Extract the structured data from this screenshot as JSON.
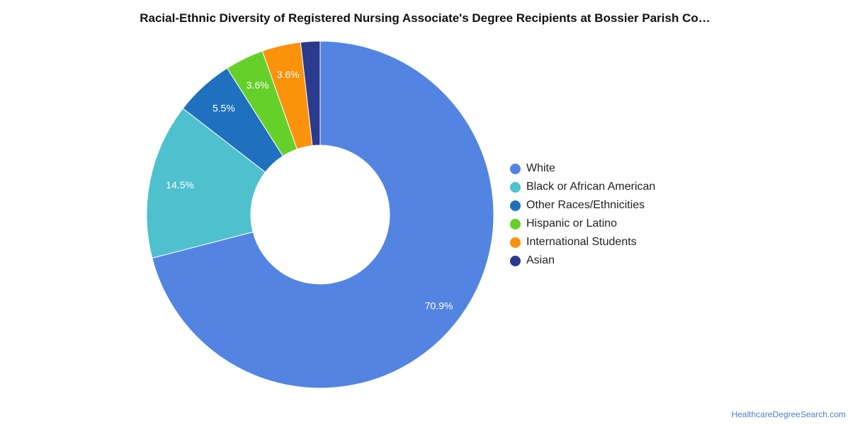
{
  "title": "Racial-Ethnic Diversity of Registered Nursing Associate's Degree Recipients at Bossier Parish Co…",
  "source": "HealthcareDegreeSearch.com",
  "chart_data": {
    "type": "pie",
    "variant": "donut",
    "title": "Racial-Ethnic Diversity of Registered Nursing Associate's Degree Recipients at Bossier Parish Co…",
    "legend_position": "right",
    "slices": [
      {
        "name": "White",
        "value": 70.9,
        "label": "70.9%",
        "color": "#5384e2"
      },
      {
        "name": "Black or African American",
        "value": 14.5,
        "label": "14.5%",
        "color": "#4fc0cd"
      },
      {
        "name": "Other Races/Ethnicities",
        "value": 5.5,
        "label": "5.5%",
        "color": "#1f70be"
      },
      {
        "name": "Hispanic or Latino",
        "value": 3.6,
        "label": "3.6%",
        "color": "#66d02a"
      },
      {
        "name": "International Students",
        "value": 3.6,
        "label": "3.6%",
        "color": "#fb920b"
      },
      {
        "name": "Asian",
        "value": 1.8,
        "label": "",
        "color": "#2a3a8c"
      }
    ]
  }
}
